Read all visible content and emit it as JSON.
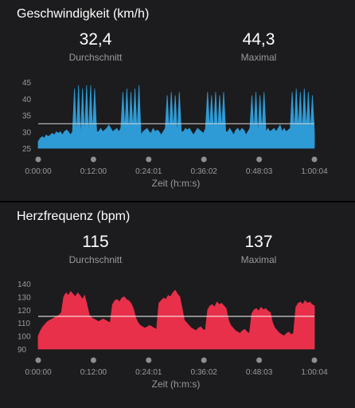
{
  "speed": {
    "title": "Geschwindigkeit (km/h)",
    "avg_value": "32,4",
    "avg_label": "Durchschnitt",
    "max_value": "44,3",
    "max_label": "Maximal",
    "color": "#2e9bd6",
    "line_color": "#d8d8d8"
  },
  "hr": {
    "title": "Herzfrequenz (bpm)",
    "avg_value": "115",
    "avg_label": "Durchschnitt",
    "max_value": "137",
    "max_label": "Maximal",
    "color": "#e8304a",
    "line_color": "#ffffff"
  },
  "chart_data": [
    {
      "type": "area",
      "series": [
        {
          "values": "Geschwindigkeit (km/h)"
        }
      ],
      "xlabel": "Zeit (h:m:s)",
      "x_ticks": [
        "0:00:00",
        "0:12:00",
        "0:24:01",
        "0:36:02",
        "0:48:03",
        "1:00:04"
      ],
      "y_ticks": [
        25,
        30,
        35,
        40,
        45
      ],
      "ylim": [
        25,
        45
      ],
      "average": 32.4,
      "maximum": 44.3,
      "values": [
        27,
        28,
        28.5,
        28,
        29,
        28.5,
        29,
        29.5,
        29,
        30,
        29.5,
        30,
        29,
        30,
        30.5,
        30,
        29,
        30,
        43,
        29,
        44,
        28,
        43,
        29,
        44,
        29,
        44,
        30,
        43,
        30,
        30,
        31,
        30,
        30.5,
        31,
        32,
        31,
        30,
        30.5,
        31,
        30,
        31,
        42,
        31,
        43,
        30,
        42,
        31,
        43,
        30,
        44,
        29,
        30,
        30.5,
        31,
        30,
        29.5,
        31,
        30,
        30.5,
        30,
        29,
        30,
        31,
        41,
        30,
        42,
        31,
        41,
        29,
        42,
        30,
        30,
        31,
        30.5,
        31,
        30,
        29,
        30,
        31,
        30.5,
        30,
        29.5,
        31,
        42,
        31,
        41,
        30,
        42,
        30,
        41,
        31,
        42,
        30,
        30,
        31,
        30,
        29,
        30.5,
        31,
        30,
        31,
        30.5,
        29,
        30,
        31,
        41,
        30,
        42,
        29,
        41,
        30,
        42,
        30,
        31,
        30,
        30.5,
        31,
        30,
        31,
        32,
        30,
        31,
        30,
        30.5,
        31,
        42,
        30,
        43,
        31,
        42,
        30,
        43,
        31,
        42,
        30,
        41,
        30
      ]
    },
    {
      "type": "area",
      "series": [
        {
          "name": "Herzfrequenz (bpm)"
        }
      ],
      "xlabel": "Zeit (h:m:s)",
      "x_ticks": [
        "0:00:00",
        "0:12:00",
        "0:24:01",
        "0:36:02",
        "0:48:03",
        "1:00:04"
      ],
      "y_ticks": [
        90,
        100,
        110,
        120,
        130,
        140
      ],
      "ylim": [
        90,
        140
      ],
      "average": 115,
      "maximum": 137,
      "values": [
        100,
        104,
        107,
        109,
        111,
        112,
        113,
        114,
        115,
        116,
        118,
        130,
        133,
        131,
        134,
        132,
        130,
        133,
        131,
        128,
        131,
        124,
        116,
        114,
        113,
        112,
        111,
        112,
        113,
        112,
        111,
        110,
        124,
        127,
        128,
        126,
        129,
        130,
        128,
        127,
        125,
        121,
        114,
        110,
        108,
        107,
        106,
        107,
        108,
        107,
        106,
        105,
        125,
        127,
        129,
        128,
        131,
        130,
        133,
        135,
        132,
        130,
        121,
        112,
        110,
        108,
        106,
        105,
        104,
        106,
        107,
        105,
        104,
        120,
        123,
        124,
        122,
        126,
        124,
        125,
        123,
        121,
        112,
        108,
        106,
        104,
        103,
        102,
        104,
        105,
        103,
        102,
        117,
        120,
        121,
        119,
        122,
        120,
        121,
        119,
        118,
        110,
        106,
        104,
        102,
        101,
        100,
        102,
        103,
        101,
        102,
        122,
        125,
        126,
        124,
        127,
        125,
        126,
        124,
        123
      ]
    }
  ]
}
